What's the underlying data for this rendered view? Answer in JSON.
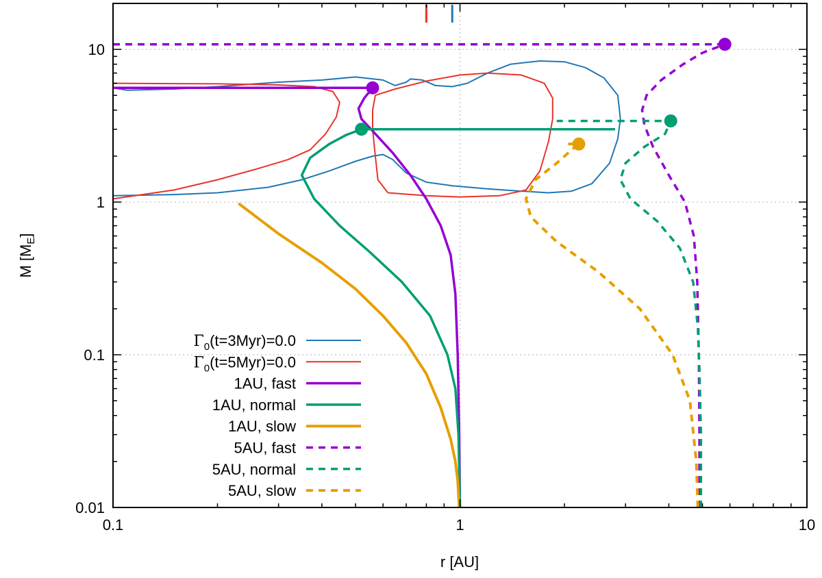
{
  "chart_data": {
    "type": "line",
    "title": "",
    "xlabel": "r [AU]",
    "ylabel_main": "M [M",
    "ylabel_sub": "E",
    "ylabel_close": "]",
    "xscale": "log",
    "yscale": "log",
    "xlim": [
      0.1,
      10
    ],
    "ylim": [
      0.01,
      20
    ],
    "grid": true,
    "x_ticks": [
      {
        "value": 0.1,
        "label": "0.1"
      },
      {
        "value": 1,
        "label": "1"
      },
      {
        "value": 10,
        "label": "10"
      }
    ],
    "y_ticks": [
      {
        "value": 0.01,
        "label": "0.01"
      },
      {
        "value": 0.1,
        "label": "0.1"
      },
      {
        "value": 1,
        "label": "1"
      },
      {
        "value": 10,
        "label": "10"
      }
    ],
    "top_markers": [
      {
        "name": "t=5Myr",
        "x": 0.8,
        "color": "#e8332a"
      },
      {
        "name": "t=3Myr",
        "x": 0.95,
        "color": "#1f77b4"
      }
    ],
    "series": [
      {
        "key": "gamma_3myr",
        "name": "Γ0(t=3Myr)=0.0",
        "label_main": "Γ",
        "label_sub": "0",
        "label_rest": "(t=3Myr)=0.0",
        "color": "#1f77b4",
        "width": 2,
        "dash": "",
        "points": [
          [
            0.1,
            1.1
          ],
          [
            0.15,
            1.12
          ],
          [
            0.2,
            1.15
          ],
          [
            0.28,
            1.25
          ],
          [
            0.35,
            1.4
          ],
          [
            0.42,
            1.6
          ],
          [
            0.5,
            1.85
          ],
          [
            0.56,
            2.0
          ],
          [
            0.6,
            2.05
          ],
          [
            0.64,
            1.9
          ],
          [
            0.7,
            1.55
          ],
          [
            0.8,
            1.35
          ],
          [
            0.95,
            1.28
          ],
          [
            1.2,
            1.22
          ],
          [
            1.5,
            1.18
          ],
          [
            1.8,
            1.15
          ],
          [
            2.1,
            1.18
          ],
          [
            2.4,
            1.32
          ],
          [
            2.7,
            1.8
          ],
          [
            2.85,
            2.6
          ],
          [
            2.9,
            3.5
          ],
          [
            2.85,
            5.0
          ],
          [
            2.6,
            6.5
          ],
          [
            2.3,
            7.6
          ],
          [
            2.0,
            8.3
          ],
          [
            1.7,
            8.4
          ],
          [
            1.4,
            8.0
          ],
          [
            1.2,
            7.0
          ],
          [
            1.05,
            6.0
          ],
          [
            0.95,
            5.7
          ],
          [
            0.85,
            5.8
          ],
          [
            0.78,
            6.3
          ],
          [
            0.72,
            6.4
          ],
          [
            0.7,
            6.1
          ],
          [
            0.65,
            5.8
          ],
          [
            0.6,
            6.3
          ],
          [
            0.5,
            6.6
          ],
          [
            0.4,
            6.3
          ],
          [
            0.3,
            6.1
          ],
          [
            0.2,
            5.7
          ],
          [
            0.15,
            5.5
          ],
          [
            0.11,
            5.4
          ],
          [
            0.1,
            5.6
          ]
        ]
      },
      {
        "key": "gamma_5myr",
        "name": "Γ0(t=5Myr)=0.0",
        "label_main": "Γ",
        "label_sub": "0",
        "label_rest": "(t=5Myr)=0.0",
        "color": "#e8332a",
        "width": 2,
        "dash": "",
        "points": [
          [
            0.1,
            1.05
          ],
          [
            0.15,
            1.2
          ],
          [
            0.2,
            1.4
          ],
          [
            0.26,
            1.65
          ],
          [
            0.32,
            1.9
          ],
          [
            0.37,
            2.2
          ],
          [
            0.41,
            2.8
          ],
          [
            0.44,
            3.6
          ],
          [
            0.45,
            4.5
          ],
          [
            0.43,
            5.3
          ],
          [
            0.38,
            5.7
          ],
          [
            0.3,
            5.85
          ],
          [
            0.2,
            5.95
          ],
          [
            0.1,
            6.0
          ]
        ]
      },
      {
        "key": "gamma_5myr_loop",
        "name": "",
        "color": "#e8332a",
        "width": 2,
        "dash": "",
        "points": [
          [
            0.62,
            1.15
          ],
          [
            0.8,
            1.1
          ],
          [
            1.0,
            1.08
          ],
          [
            1.3,
            1.1
          ],
          [
            1.55,
            1.2
          ],
          [
            1.7,
            1.6
          ],
          [
            1.8,
            2.5
          ],
          [
            1.85,
            3.5
          ],
          [
            1.85,
            4.8
          ],
          [
            1.75,
            6.0
          ],
          [
            1.5,
            6.8
          ],
          [
            1.2,
            7.0
          ],
          [
            1.0,
            6.8
          ],
          [
            0.8,
            6.2
          ],
          [
            0.65,
            5.5
          ],
          [
            0.57,
            5.0
          ],
          [
            0.56,
            4.0
          ],
          [
            0.56,
            3.0
          ],
          [
            0.57,
            2.0
          ],
          [
            0.58,
            1.4
          ],
          [
            0.62,
            1.15
          ]
        ]
      },
      {
        "key": "fast_1au",
        "name": "1AU, fast",
        "color": "#9400d3",
        "width": 3.5,
        "dash": "",
        "points": [
          [
            1.0,
            0.01
          ],
          [
            0.995,
            0.03
          ],
          [
            0.985,
            0.1
          ],
          [
            0.97,
            0.25
          ],
          [
            0.94,
            0.45
          ],
          [
            0.88,
            0.7
          ],
          [
            0.8,
            1.05
          ],
          [
            0.72,
            1.5
          ],
          [
            0.64,
            2.1
          ],
          [
            0.57,
            2.8
          ],
          [
            0.52,
            3.5
          ],
          [
            0.51,
            4.1
          ],
          [
            0.53,
            4.8
          ],
          [
            0.56,
            5.6
          ],
          [
            0.5,
            5.6
          ],
          [
            0.3,
            5.6
          ],
          [
            0.2,
            5.6
          ],
          [
            0.1,
            5.6
          ]
        ],
        "end_marker": [
          0.56,
          5.6
        ]
      },
      {
        "key": "normal_1au",
        "name": "1AU, normal",
        "color": "#009e73",
        "width": 3.5,
        "dash": "",
        "points": [
          [
            1.0,
            0.01
          ],
          [
            0.99,
            0.03
          ],
          [
            0.97,
            0.06
          ],
          [
            0.92,
            0.1
          ],
          [
            0.82,
            0.18
          ],
          [
            0.68,
            0.3
          ],
          [
            0.55,
            0.47
          ],
          [
            0.45,
            0.7
          ],
          [
            0.38,
            1.05
          ],
          [
            0.35,
            1.5
          ],
          [
            0.37,
            1.95
          ],
          [
            0.42,
            2.4
          ],
          [
            0.47,
            2.75
          ],
          [
            0.52,
            3.0
          ],
          [
            1.0,
            3.0
          ],
          [
            2.0,
            3.0
          ],
          [
            2.8,
            3.0
          ]
        ],
        "start_marker": [
          0.52,
          3.0
        ]
      },
      {
        "key": "slow_1au",
        "name": "1AU, slow",
        "color": "#e69f00",
        "width": 4,
        "dash": "",
        "points": [
          [
            0.23,
            0.98
          ],
          [
            0.3,
            0.62
          ],
          [
            0.4,
            0.4
          ],
          [
            0.5,
            0.27
          ],
          [
            0.6,
            0.18
          ],
          [
            0.7,
            0.12
          ],
          [
            0.8,
            0.075
          ],
          [
            0.88,
            0.045
          ],
          [
            0.94,
            0.028
          ],
          [
            0.97,
            0.02
          ],
          [
            0.985,
            0.015
          ],
          [
            0.995,
            0.01
          ]
        ]
      },
      {
        "key": "fast_5au",
        "name": "5AU, fast",
        "color": "#9400d3",
        "width": 3.5,
        "dash": "10,8",
        "points": [
          [
            4.9,
            0.01
          ],
          [
            4.9,
            0.03
          ],
          [
            4.88,
            0.1
          ],
          [
            4.83,
            0.3
          ],
          [
            4.72,
            0.6
          ],
          [
            4.45,
            1.0
          ],
          [
            4.0,
            1.5
          ],
          [
            3.6,
            2.3
          ],
          [
            3.4,
            3.2
          ],
          [
            3.35,
            4.0
          ],
          [
            3.45,
            5.0
          ],
          [
            3.8,
            6.3
          ],
          [
            4.4,
            8.0
          ],
          [
            5.0,
            9.5
          ],
          [
            5.8,
            10.8
          ]
        ],
        "end_marker": [
          5.8,
          10.8
        ]
      },
      {
        "key": "fast_5au_flat",
        "name": "",
        "color": "#9400d3",
        "width": 3.5,
        "dash": "10,8",
        "points": [
          [
            0.1,
            10.8
          ],
          [
            0.5,
            10.8
          ],
          [
            1.0,
            10.8
          ],
          [
            3.0,
            10.8
          ],
          [
            5.8,
            10.8
          ]
        ]
      },
      {
        "key": "normal_5au",
        "name": "5AU, normal",
        "color": "#009e73",
        "width": 3.5,
        "dash": "10,8",
        "points": [
          [
            4.95,
            0.01
          ],
          [
            4.95,
            0.03
          ],
          [
            4.9,
            0.08
          ],
          [
            4.85,
            0.15
          ],
          [
            4.7,
            0.3
          ],
          [
            4.3,
            0.5
          ],
          [
            3.7,
            0.75
          ],
          [
            3.1,
            1.05
          ],
          [
            2.9,
            1.4
          ],
          [
            3.0,
            1.8
          ],
          [
            3.4,
            2.3
          ],
          [
            3.9,
            2.8
          ],
          [
            4.05,
            3.4
          ],
          [
            2.8,
            3.4
          ],
          [
            1.9,
            3.4
          ]
        ],
        "end_marker": [
          4.05,
          3.4
        ]
      },
      {
        "key": "slow_5au",
        "name": "5AU, slow",
        "color": "#e69f00",
        "width": 4,
        "dash": "10,8",
        "points": [
          [
            4.85,
            0.01
          ],
          [
            4.8,
            0.02
          ],
          [
            4.6,
            0.05
          ],
          [
            4.1,
            0.1
          ],
          [
            3.3,
            0.2
          ],
          [
            2.5,
            0.35
          ],
          [
            1.9,
            0.55
          ],
          [
            1.6,
            0.8
          ],
          [
            1.55,
            1.05
          ],
          [
            1.65,
            1.4
          ],
          [
            1.9,
            1.8
          ],
          [
            2.1,
            2.2
          ],
          [
            2.2,
            2.4
          ],
          [
            2.05,
            2.4
          ]
        ],
        "end_marker": [
          2.2,
          2.4
        ]
      }
    ],
    "legend": [
      "gamma_3myr",
      "gamma_5myr",
      "fast_1au",
      "normal_1au",
      "slow_1au",
      "fast_5au",
      "normal_5au",
      "slow_5au"
    ],
    "legend_position": "bottom-left"
  }
}
